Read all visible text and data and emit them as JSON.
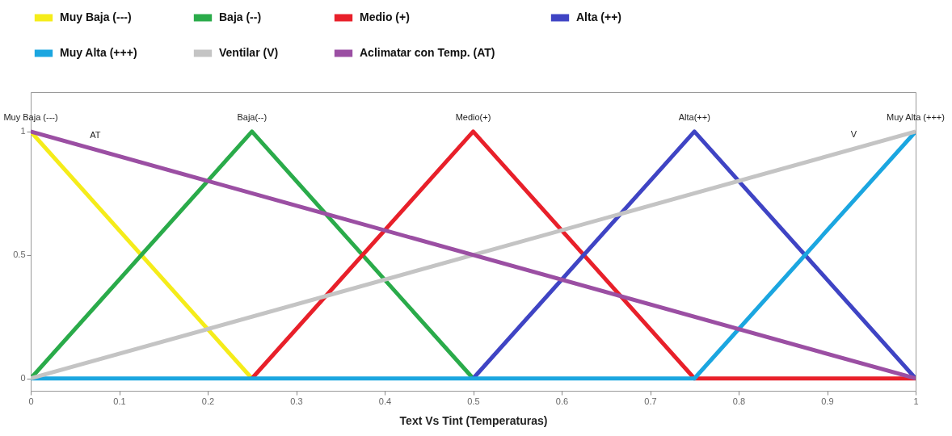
{
  "chart_data": {
    "type": "line",
    "xlabel": "Text Vs Tint (Temperaturas)",
    "xlim": [
      0,
      1
    ],
    "xticks": [
      0,
      0.1,
      0.2,
      0.3,
      0.4,
      0.5,
      0.6,
      0.7,
      0.8,
      0.9,
      1
    ],
    "ylim": [
      -0.05,
      1.16
    ],
    "yticks": [
      0,
      0.5,
      1
    ],
    "grid": false,
    "legend": "top",
    "marker": "none",
    "line_style": "solid",
    "series": [
      {
        "name": "Muy Baja (---)",
        "color": "#f5ec1a",
        "x": [
          0,
          0.25
        ],
        "values": [
          1,
          0
        ]
      },
      {
        "name": "Baja (--)",
        "color": "#2aab4a",
        "x": [
          0,
          0.25,
          0.5
        ],
        "values": [
          0,
          1,
          0
        ]
      },
      {
        "name": "Medio (+)",
        "color": "#e8202a",
        "x": [
          0.25,
          0.5,
          0.75,
          1
        ],
        "values": [
          0,
          1,
          0,
          0
        ]
      },
      {
        "name": "Alta (++)",
        "color": "#3f44c4",
        "x": [
          0.5,
          0.75,
          1
        ],
        "values": [
          0,
          1,
          0
        ]
      },
      {
        "name": "Muy Alta (+++)",
        "color": "#1ba6e0",
        "x": [
          0,
          0.75,
          1
        ],
        "values": [
          0,
          0,
          1
        ]
      },
      {
        "name": "Ventilar (V)",
        "color": "#c4c4c4",
        "x": [
          0,
          1
        ],
        "values": [
          0,
          1
        ]
      },
      {
        "name": "Aclimatar con Temp. (AT)",
        "color": "#9b4fa3",
        "x": [
          0,
          1
        ],
        "values": [
          1,
          0
        ]
      }
    ],
    "annotations": [
      {
        "text": "Muy Baja (---)",
        "x": 0,
        "y": 1
      },
      {
        "text": "Baja(--)",
        "x": 0.25,
        "y": 1
      },
      {
        "text": "Medio(+)",
        "x": 0.5,
        "y": 1
      },
      {
        "text": "Alta(++)",
        "x": 0.75,
        "y": 1
      },
      {
        "text": "Muy Alta (+++)",
        "x": 1,
        "y": 1
      },
      {
        "text": "AT",
        "x": 0.073,
        "y": 0.927
      },
      {
        "text": "V",
        "x": 0.93,
        "y": 0.93
      }
    ]
  }
}
